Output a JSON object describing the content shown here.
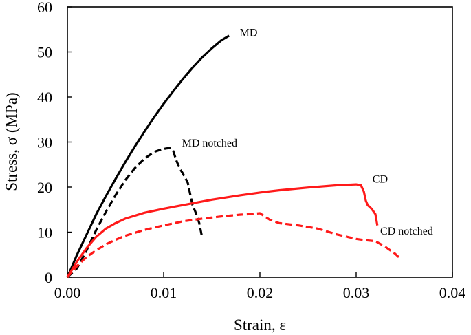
{
  "chart_data": {
    "type": "line",
    "title": "",
    "xlabel": "Strain, ε",
    "ylabel": "Stress, σ (MPa)",
    "xlim": [
      0,
      0.04
    ],
    "ylim": [
      0,
      60
    ],
    "xticks": [
      0,
      0.01,
      0.02,
      0.03,
      0.04
    ],
    "xtick_labels": [
      "0.00",
      "0.01",
      "0.02",
      "0.03",
      "0.04"
    ],
    "yticks": [
      0,
      10,
      20,
      30,
      40,
      50,
      60
    ],
    "ytick_labels": [
      "0",
      "10",
      "20",
      "30",
      "40",
      "50",
      "60"
    ],
    "grid": false,
    "series": [
      {
        "name": "MD",
        "color": "#000000",
        "style": "solid",
        "label_at": [
          0.0179,
          53.5
        ],
        "x": [
          0,
          0.0005,
          0.001,
          0.002,
          0.003,
          0.004,
          0.005,
          0.006,
          0.007,
          0.008,
          0.009,
          0.01,
          0.011,
          0.012,
          0.013,
          0.014,
          0.015,
          0.016,
          0.0168
        ],
        "y": [
          0,
          2.5,
          5,
          9.5,
          14,
          18,
          21.8,
          25.5,
          29,
          32.3,
          35.5,
          38.5,
          41.3,
          44,
          46.5,
          48.8,
          50.8,
          52.6,
          53.6
        ]
      },
      {
        "name": "MD notched",
        "color": "#000000",
        "style": "dashed",
        "label_at": [
          0.0119,
          29.0
        ],
        "x": [
          0,
          0.001,
          0.002,
          0.003,
          0.004,
          0.005,
          0.006,
          0.007,
          0.008,
          0.009,
          0.0098,
          0.0103,
          0.0108,
          0.011,
          0.0113,
          0.0117,
          0.012,
          0.0125,
          0.0128,
          0.013,
          0.0133,
          0.0137,
          0.014
        ],
        "y": [
          0,
          2,
          6,
          10.5,
          14.5,
          18.2,
          21.5,
          24.2,
          26.3,
          27.8,
          28.4,
          28.6,
          28.7,
          28,
          26,
          24,
          23,
          21,
          18,
          16,
          14.5,
          12,
          8.8
        ]
      },
      {
        "name": "CD",
        "color": "#ff1a1a",
        "style": "solid",
        "label_at": [
          0.0317,
          21.0
        ],
        "x": [
          0,
          0.001,
          0.002,
          0.003,
          0.004,
          0.005,
          0.006,
          0.008,
          0.01,
          0.012,
          0.015,
          0.018,
          0.02,
          0.022,
          0.025,
          0.028,
          0.03,
          0.0305,
          0.0308,
          0.031,
          0.0312,
          0.0316,
          0.032,
          0.0322
        ],
        "y": [
          0,
          3.5,
          6.5,
          9,
          10.8,
          12,
          13,
          14.3,
          15.2,
          16,
          17.2,
          18.2,
          18.8,
          19.3,
          19.9,
          20.4,
          20.6,
          20.4,
          19,
          17,
          16,
          15.2,
          14,
          11.5
        ]
      },
      {
        "name": "CD notched",
        "color": "#ff1a1a",
        "style": "dashed",
        "label_at": [
          0.0325,
          9.5
        ],
        "x": [
          0,
          0.001,
          0.002,
          0.003,
          0.004,
          0.005,
          0.006,
          0.008,
          0.01,
          0.012,
          0.014,
          0.016,
          0.018,
          0.019,
          0.02,
          0.021,
          0.022,
          0.024,
          0.026,
          0.028,
          0.03,
          0.031,
          0.032,
          0.033,
          0.034,
          0.0345
        ],
        "y": [
          0,
          2.5,
          4.5,
          6,
          7.3,
          8.3,
          9.2,
          10.5,
          11.5,
          12.4,
          13,
          13.5,
          13.9,
          14,
          14.2,
          12.8,
          12,
          11.5,
          10.8,
          9.5,
          8.5,
          8.2,
          8,
          6.8,
          5.3,
          4.3
        ]
      }
    ]
  }
}
